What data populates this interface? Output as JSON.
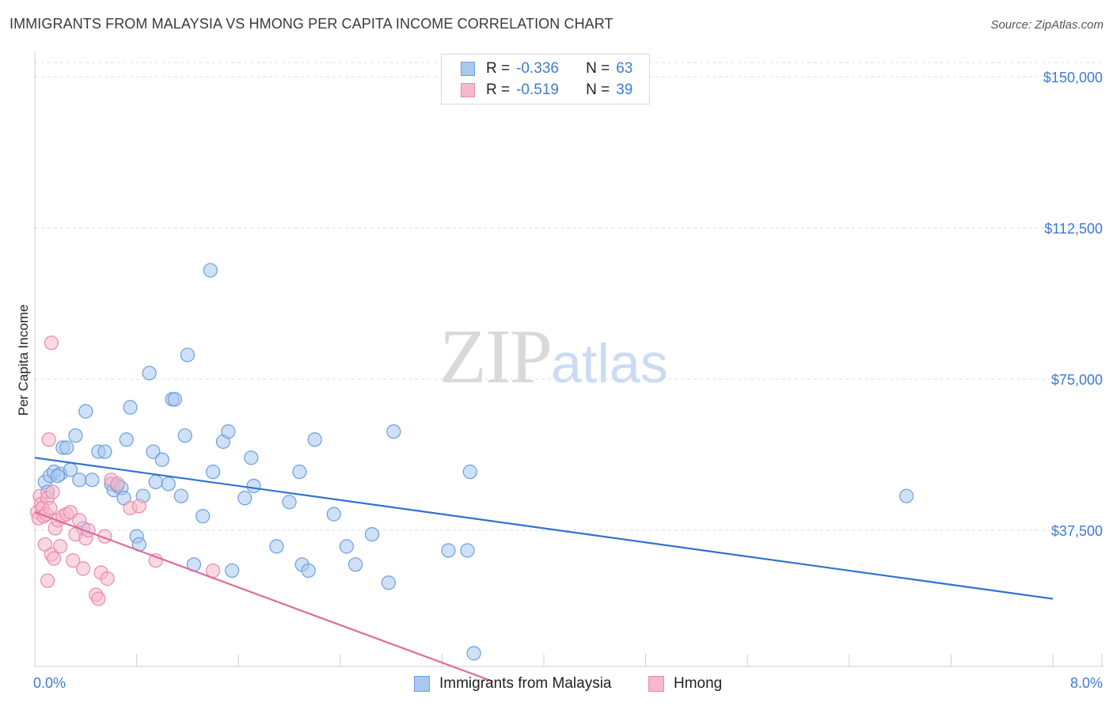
{
  "header": {
    "title": "IMMIGRANTS FROM MALAYSIA VS HMONG PER CAPITA INCOME CORRELATION CHART",
    "source": "Source: ZipAtlas.com"
  },
  "watermark": {
    "zip": "ZIP",
    "atlas": "atlas"
  },
  "legend_top": [
    {
      "r_label": "R =",
      "r_value": "-0.336",
      "n_label": "N =",
      "n_value": "63"
    },
    {
      "r_label": "R =",
      "r_value": "-0.519",
      "n_label": "N =",
      "n_value": "39"
    }
  ],
  "legend_bottom": [
    {
      "label": "Immigrants from Malaysia"
    },
    {
      "label": "Hmong"
    }
  ],
  "colors": {
    "blue_fill": "#a8c8f0",
    "blue_stroke": "#6a9ee0",
    "blue_line": "#2f72d0",
    "pink_fill": "#f6b8cb",
    "pink_stroke": "#ea8aa9",
    "pink_line": "#e06b98",
    "grid": "#dddddd",
    "tick_text": "#3d7bd4"
  },
  "chart_data": {
    "type": "scatter",
    "title": "IMMIGRANTS FROM MALAYSIA VS HMONG PER CAPITA INCOME CORRELATION CHART",
    "xlabel": "",
    "ylabel": "Per Capita Income",
    "xlim": [
      0,
      8.0
    ],
    "ylim": [
      0,
      155000
    ],
    "y_ticks": [
      {
        "value": 37500,
        "label": "$37,500"
      },
      {
        "value": 75000,
        "label": "$75,000"
      },
      {
        "value": 112500,
        "label": "$112,500"
      },
      {
        "value": 150000,
        "label": "$150,000"
      }
    ],
    "x_tick_labels": [
      {
        "value": 0,
        "label": "0.0%"
      },
      {
        "value": 8.0,
        "label": "8.0%"
      }
    ],
    "grid": true,
    "legend_position": "top-center",
    "series": [
      {
        "name": "Immigrants from Malaysia",
        "points": [
          [
            0.08,
            49500
          ],
          [
            0.1,
            47000
          ],
          [
            0.12,
            51000
          ],
          [
            0.15,
            52000
          ],
          [
            0.2,
            51500
          ],
          [
            0.22,
            58000
          ],
          [
            0.25,
            58000
          ],
          [
            0.28,
            52500
          ],
          [
            0.32,
            61000
          ],
          [
            0.35,
            50000
          ],
          [
            0.4,
            67000
          ],
          [
            0.45,
            50000
          ],
          [
            0.5,
            57000
          ],
          [
            0.55,
            57000
          ],
          [
            0.6,
            49000
          ],
          [
            0.62,
            47500
          ],
          [
            0.65,
            48500
          ],
          [
            0.68,
            48000
          ],
          [
            0.7,
            45500
          ],
          [
            0.72,
            60000
          ],
          [
            0.75,
            68000
          ],
          [
            0.8,
            36000
          ],
          [
            0.82,
            34000
          ],
          [
            0.85,
            46000
          ],
          [
            0.9,
            76500
          ],
          [
            0.93,
            57000
          ],
          [
            0.95,
            49500
          ],
          [
            1.0,
            55000
          ],
          [
            1.05,
            49000
          ],
          [
            1.08,
            70000
          ],
          [
            1.1,
            70000
          ],
          [
            1.15,
            46000
          ],
          [
            1.18,
            61000
          ],
          [
            1.2,
            81000
          ],
          [
            1.25,
            29000
          ],
          [
            1.32,
            41000
          ],
          [
            1.38,
            102000
          ],
          [
            1.4,
            52000
          ],
          [
            1.48,
            59500
          ],
          [
            1.52,
            62000
          ],
          [
            1.55,
            27500
          ],
          [
            1.65,
            45500
          ],
          [
            1.7,
            55500
          ],
          [
            1.72,
            48500
          ],
          [
            1.9,
            33500
          ],
          [
            2.0,
            44500
          ],
          [
            2.08,
            52000
          ],
          [
            2.1,
            29000
          ],
          [
            2.15,
            27500
          ],
          [
            2.2,
            60000
          ],
          [
            2.35,
            41500
          ],
          [
            2.45,
            33500
          ],
          [
            2.52,
            29000
          ],
          [
            2.65,
            36500
          ],
          [
            2.78,
            24500
          ],
          [
            2.82,
            62000
          ],
          [
            3.25,
            32500
          ],
          [
            3.4,
            32500
          ],
          [
            3.42,
            52000
          ],
          [
            3.45,
            7000
          ],
          [
            6.85,
            46000
          ],
          [
            0.18,
            51000
          ],
          [
            0.38,
            38000
          ]
        ]
      },
      {
        "name": "Hmong",
        "points": [
          [
            0.02,
            42000
          ],
          [
            0.03,
            40500
          ],
          [
            0.04,
            46000
          ],
          [
            0.05,
            44000
          ],
          [
            0.06,
            43000
          ],
          [
            0.07,
            41000
          ],
          [
            0.08,
            34000
          ],
          [
            0.09,
            41500
          ],
          [
            0.1,
            45500
          ],
          [
            0.1,
            25000
          ],
          [
            0.11,
            60000
          ],
          [
            0.12,
            43000
          ],
          [
            0.13,
            31500
          ],
          [
            0.14,
            47000
          ],
          [
            0.15,
            30500
          ],
          [
            0.16,
            38000
          ],
          [
            0.18,
            40000
          ],
          [
            0.2,
            33500
          ],
          [
            0.22,
            41000
          ],
          [
            0.25,
            41500
          ],
          [
            0.28,
            42000
          ],
          [
            0.3,
            30000
          ],
          [
            0.32,
            36500
          ],
          [
            0.35,
            40000
          ],
          [
            0.38,
            28000
          ],
          [
            0.4,
            35500
          ],
          [
            0.42,
            37500
          ],
          [
            0.48,
            21500
          ],
          [
            0.5,
            20500
          ],
          [
            0.52,
            27000
          ],
          [
            0.55,
            36000
          ],
          [
            0.57,
            25500
          ],
          [
            0.6,
            50000
          ],
          [
            0.65,
            49000
          ],
          [
            0.75,
            43000
          ],
          [
            0.82,
            43500
          ],
          [
            0.95,
            30000
          ],
          [
            1.4,
            27500
          ],
          [
            0.13,
            84000
          ]
        ]
      }
    ],
    "trend_lines": [
      {
        "series": "Immigrants from Malaysia",
        "x": [
          0,
          8.0
        ],
        "y": [
          55500,
          20500
        ]
      },
      {
        "series": "Hmong",
        "x": [
          0,
          3.6
        ],
        "y": [
          42000,
          0
        ]
      }
    ]
  }
}
